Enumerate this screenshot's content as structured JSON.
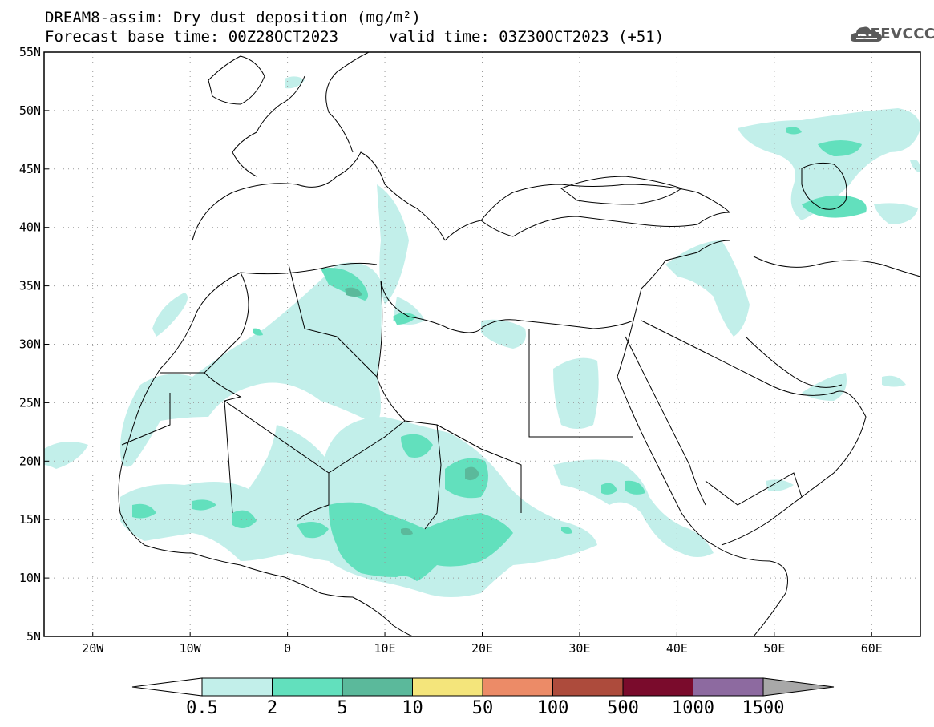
{
  "header": {
    "title_line1": "DREAM8-assim: Dry dust deposition (mg/m²)",
    "title_line2": "Forecast base time: 00Z28OCT2023",
    "title_line2b": "valid time: 03Z30OCT2023 (+51)",
    "logo_text": "SEEVCCC"
  },
  "map": {
    "lat_labels": [
      "55N",
      "50N",
      "45N",
      "40N",
      "35N",
      "30N",
      "25N",
      "20N",
      "15N",
      "10N",
      "5N"
    ],
    "lon_labels": [
      "20W",
      "10W",
      "0",
      "10E",
      "20E",
      "30E",
      "40E",
      "50E",
      "60E"
    ],
    "lon_range": [
      -25,
      65
    ],
    "lat_range": [
      5,
      55
    ],
    "gridlines": "dotted",
    "colors": {
      "land_outline": "#000000",
      "light": "#c2efea",
      "medium": "#62e0bd",
      "dark": "#5bb99b"
    }
  },
  "colorbar": {
    "labels": [
      "0.5",
      "2",
      "5",
      "10",
      "50",
      "100",
      "500",
      "1000",
      "1500"
    ],
    "colors": [
      "#c2efea",
      "#62e0bd",
      "#5bb99b",
      "#f4e57b",
      "#ec8b67",
      "#ad4b3c",
      "#7a0b2c",
      "#8d6aa0",
      "#a8a8a8"
    ],
    "under_color": "#ffffff",
    "over_color": "#a8a8a8"
  }
}
